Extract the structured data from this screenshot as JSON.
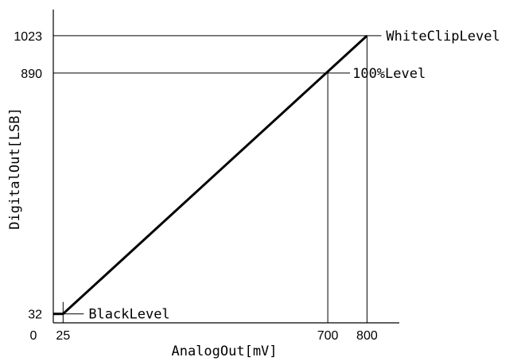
{
  "chart_data": {
    "type": "line",
    "xlabel": "AnalogOut[mV]",
    "ylabel": "DigitalOut[LSB]",
    "xlim": [
      0,
      900
    ],
    "ylim": [
      0,
      1100
    ],
    "origin_label": "0",
    "x_ticks": [
      {
        "value": 25,
        "label": "25"
      },
      {
        "value": 700,
        "label": "700"
      },
      {
        "value": 800,
        "label": "800"
      }
    ],
    "y_ticks": [
      {
        "value": 32,
        "label": "32"
      },
      {
        "value": 890,
        "label": "890"
      },
      {
        "value": 1023,
        "label": "1023"
      }
    ],
    "series": [
      {
        "points": [
          [
            0,
            32
          ],
          [
            25,
            32
          ],
          [
            800,
            1023
          ]
        ],
        "color": "#000000"
      }
    ],
    "annotations": [
      {
        "label": "BlackLevel",
        "x": 25,
        "y": 32
      },
      {
        "label": "100%Level",
        "x": 700,
        "y": 890
      },
      {
        "label": "WhiteClipLevel",
        "x": 800,
        "y": 1023
      }
    ],
    "grid": false
  }
}
